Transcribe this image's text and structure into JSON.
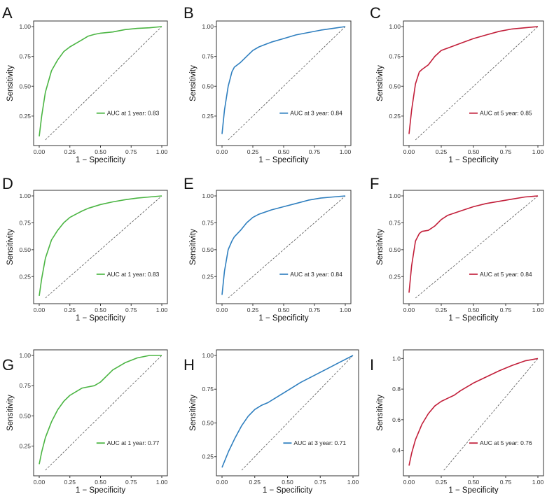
{
  "colors": {
    "green": "#4bb543",
    "blue": "#2f7fbf",
    "red": "#c21f3a",
    "diagonal": "#555555",
    "axis": "#333333"
  },
  "chart_data": [
    {
      "type": "line",
      "panel": "A",
      "xlabel": "1 − Specificity",
      "ylabel": "Sensitivity",
      "xlim": [
        0,
        1
      ],
      "ylim": [
        0.05,
        1.0
      ],
      "xticks": [
        "0.00",
        "0.25",
        "0.50",
        "0.75",
        "1.00"
      ],
      "xtick_values": [
        0,
        0.25,
        0.5,
        0.75,
        1.0
      ],
      "yticks": [
        "0.25",
        "0.50",
        "0.75",
        "1.00"
      ],
      "ytick_values": [
        0.25,
        0.5,
        0.75,
        1.0
      ],
      "series": [
        {
          "name": "AUC at 1 year: 0.83",
          "color": "green",
          "x": [
            0,
            0.02,
            0.05,
            0.1,
            0.15,
            0.2,
            0.25,
            0.3,
            0.35,
            0.4,
            0.45,
            0.5,
            0.6,
            0.7,
            0.8,
            0.9,
            1.0
          ],
          "y": [
            0.08,
            0.25,
            0.45,
            0.63,
            0.72,
            0.79,
            0.83,
            0.86,
            0.89,
            0.92,
            0.935,
            0.945,
            0.955,
            0.975,
            0.985,
            0.99,
            1.0
          ]
        }
      ]
    },
    {
      "type": "line",
      "panel": "B",
      "xlabel": "1 − Specificity",
      "ylabel": "Sensitivity",
      "xlim": [
        0,
        1
      ],
      "ylim": [
        0.05,
        1.0
      ],
      "xticks": [
        "0.00",
        "0.25",
        "0.50",
        "0.75",
        "1.00"
      ],
      "xtick_values": [
        0,
        0.25,
        0.5,
        0.75,
        1.0
      ],
      "yticks": [
        "0.25",
        "0.50",
        "0.75",
        "1.00"
      ],
      "ytick_values": [
        0.25,
        0.5,
        0.75,
        1.0
      ],
      "series": [
        {
          "name": "AUC at 3 year: 0.84",
          "color": "blue",
          "x": [
            0,
            0.02,
            0.05,
            0.08,
            0.1,
            0.15,
            0.2,
            0.25,
            0.3,
            0.4,
            0.5,
            0.6,
            0.7,
            0.8,
            0.9,
            1.0
          ],
          "y": [
            0.1,
            0.3,
            0.5,
            0.62,
            0.66,
            0.7,
            0.75,
            0.8,
            0.83,
            0.87,
            0.9,
            0.93,
            0.95,
            0.97,
            0.985,
            1.0
          ]
        }
      ]
    },
    {
      "type": "line",
      "panel": "C",
      "xlabel": "1 − Specificity",
      "ylabel": "Sensitivity",
      "xlim": [
        0,
        1
      ],
      "ylim": [
        0.05,
        1.0
      ],
      "xticks": [
        "0.00",
        "0.25",
        "0.50",
        "0.75",
        "1.00"
      ],
      "xtick_values": [
        0,
        0.25,
        0.5,
        0.75,
        1.0
      ],
      "yticks": [
        "0.25",
        "0.50",
        "0.75",
        "1.00"
      ],
      "ytick_values": [
        0.25,
        0.5,
        0.75,
        1.0
      ],
      "series": [
        {
          "name": "AUC at 5 year: 0.85",
          "color": "red",
          "x": [
            0,
            0.02,
            0.05,
            0.08,
            0.1,
            0.15,
            0.2,
            0.25,
            0.3,
            0.4,
            0.5,
            0.6,
            0.7,
            0.8,
            0.9,
            1.0
          ],
          "y": [
            0.1,
            0.3,
            0.52,
            0.62,
            0.64,
            0.68,
            0.75,
            0.8,
            0.82,
            0.86,
            0.9,
            0.93,
            0.96,
            0.98,
            0.99,
            1.0
          ]
        }
      ]
    },
    {
      "type": "line",
      "panel": "D",
      "xlabel": "1 − Specificity",
      "ylabel": "Sensitivity",
      "xlim": [
        0,
        1
      ],
      "ylim": [
        0.05,
        1.0
      ],
      "xticks": [
        "0.00",
        "0.25",
        "0.50",
        "0.75",
        "1.00"
      ],
      "xtick_values": [
        0,
        0.25,
        0.5,
        0.75,
        1.0
      ],
      "yticks": [
        "0.25",
        "0.50",
        "0.75",
        "1.00"
      ],
      "ytick_values": [
        0.25,
        0.5,
        0.75,
        1.0
      ],
      "series": [
        {
          "name": "AUC at 1 year: 0.83",
          "color": "green",
          "x": [
            0,
            0.02,
            0.05,
            0.1,
            0.15,
            0.2,
            0.25,
            0.3,
            0.35,
            0.4,
            0.5,
            0.6,
            0.7,
            0.8,
            0.9,
            1.0
          ],
          "y": [
            0.07,
            0.23,
            0.42,
            0.59,
            0.68,
            0.75,
            0.8,
            0.83,
            0.86,
            0.885,
            0.92,
            0.945,
            0.965,
            0.98,
            0.99,
            1.0
          ]
        }
      ]
    },
    {
      "type": "line",
      "panel": "E",
      "xlabel": "1 − Specificity",
      "ylabel": "Sensitivity",
      "xlim": [
        0,
        1
      ],
      "ylim": [
        0.05,
        1.0
      ],
      "xticks": [
        "0.00",
        "0.25",
        "0.50",
        "0.75",
        "1.00"
      ],
      "xtick_values": [
        0,
        0.25,
        0.5,
        0.75,
        1.0
      ],
      "yticks": [
        "0.25",
        "0.50",
        "0.75",
        "1.00"
      ],
      "ytick_values": [
        0.25,
        0.5,
        0.75,
        1.0
      ],
      "series": [
        {
          "name": "AUC at 3 year: 0.84",
          "color": "blue",
          "x": [
            0,
            0.02,
            0.05,
            0.08,
            0.1,
            0.15,
            0.2,
            0.25,
            0.3,
            0.4,
            0.5,
            0.6,
            0.7,
            0.8,
            0.9,
            1.0
          ],
          "y": [
            0.08,
            0.3,
            0.5,
            0.58,
            0.62,
            0.68,
            0.75,
            0.8,
            0.83,
            0.87,
            0.9,
            0.93,
            0.96,
            0.98,
            0.99,
            1.0
          ]
        }
      ]
    },
    {
      "type": "line",
      "panel": "F",
      "xlabel": "1 − Specificity",
      "ylabel": "Sensitivity",
      "xlim": [
        0,
        1
      ],
      "ylim": [
        0.05,
        1.0
      ],
      "xticks": [
        "0.00",
        "0.25",
        "0.50",
        "0.75",
        "1.00"
      ],
      "xtick_values": [
        0,
        0.25,
        0.5,
        0.75,
        1.0
      ],
      "yticks": [
        "0.25",
        "0.50",
        "0.75",
        "1.00"
      ],
      "ytick_values": [
        0.25,
        0.5,
        0.75,
        1.0
      ],
      "series": [
        {
          "name": "AUC at 5 year: 0.84",
          "color": "red",
          "x": [
            0,
            0.02,
            0.05,
            0.08,
            0.1,
            0.15,
            0.2,
            0.25,
            0.3,
            0.4,
            0.5,
            0.6,
            0.7,
            0.8,
            0.9,
            1.0
          ],
          "y": [
            0.1,
            0.35,
            0.58,
            0.65,
            0.67,
            0.68,
            0.72,
            0.78,
            0.82,
            0.86,
            0.9,
            0.93,
            0.95,
            0.97,
            0.99,
            1.0
          ]
        }
      ]
    },
    {
      "type": "line",
      "panel": "G",
      "xlabel": "1 − Specificity",
      "ylabel": "Sensitivity",
      "xlim": [
        0,
        1
      ],
      "ylim": [
        0.05,
        1.0
      ],
      "xticks": [
        "0.00",
        "0.25",
        "0.50",
        "0.75",
        "1.00"
      ],
      "xtick_values": [
        0,
        0.25,
        0.5,
        0.75,
        1.0
      ],
      "yticks": [
        "0.25",
        "0.50",
        "0.75",
        "1.00"
      ],
      "ytick_values": [
        0.25,
        0.5,
        0.75,
        1.0
      ],
      "series": [
        {
          "name": "AUC at 1 year: 0.77",
          "color": "green",
          "x": [
            0,
            0.02,
            0.05,
            0.1,
            0.15,
            0.2,
            0.25,
            0.3,
            0.35,
            0.4,
            0.45,
            0.5,
            0.55,
            0.6,
            0.7,
            0.8,
            0.9,
            0.95,
            1.0
          ],
          "y": [
            0.1,
            0.2,
            0.32,
            0.45,
            0.55,
            0.62,
            0.67,
            0.7,
            0.73,
            0.74,
            0.75,
            0.78,
            0.83,
            0.88,
            0.94,
            0.98,
            1.0,
            1.0,
            1.0
          ]
        }
      ]
    },
    {
      "type": "line",
      "panel": "H",
      "xlabel": "1 − Specificity",
      "ylabel": "Sensitivity",
      "xlim": [
        0,
        1
      ],
      "ylim": [
        0.15,
        1.0
      ],
      "xticks": [
        "0.00",
        "0.25",
        "0.50",
        "0.75",
        "1.00"
      ],
      "xtick_values": [
        0,
        0.25,
        0.5,
        0.75,
        1.0
      ],
      "yticks": [
        "0.25",
        "0.50",
        "0.75",
        "1.00"
      ],
      "ytick_values": [
        0.25,
        0.5,
        0.75,
        1.0
      ],
      "series": [
        {
          "name": "AUC at 3 year: 0.71",
          "color": "blue",
          "x": [
            0,
            0.05,
            0.1,
            0.15,
            0.2,
            0.25,
            0.3,
            0.35,
            0.4,
            0.5,
            0.6,
            0.7,
            0.8,
            0.9,
            1.0
          ],
          "y": [
            0.17,
            0.29,
            0.39,
            0.48,
            0.55,
            0.6,
            0.63,
            0.65,
            0.68,
            0.74,
            0.8,
            0.85,
            0.9,
            0.95,
            1.0
          ]
        }
      ]
    },
    {
      "type": "line",
      "panel": "I",
      "xlabel": "1 − Specificity",
      "ylabel": "Sensitivity",
      "xlim": [
        0,
        1
      ],
      "ylim": [
        0.27,
        1.02
      ],
      "xticks": [
        "0.00",
        "0.25",
        "0.50",
        "0.75",
        "1.00"
      ],
      "xtick_values": [
        0,
        0.25,
        0.5,
        0.75,
        1.0
      ],
      "yticks": [
        "0.4",
        "0.6",
        "0.8",
        "1.0"
      ],
      "ytick_values": [
        0.4,
        0.6,
        0.8,
        1.0
      ],
      "series": [
        {
          "name": "AUC at 5 year: 0.76",
          "color": "red",
          "x": [
            0,
            0.02,
            0.05,
            0.1,
            0.15,
            0.2,
            0.25,
            0.3,
            0.35,
            0.4,
            0.5,
            0.6,
            0.7,
            0.8,
            0.9,
            1.0
          ],
          "y": [
            0.3,
            0.38,
            0.47,
            0.57,
            0.64,
            0.69,
            0.72,
            0.74,
            0.76,
            0.79,
            0.84,
            0.88,
            0.92,
            0.955,
            0.985,
            1.0
          ]
        }
      ]
    }
  ]
}
